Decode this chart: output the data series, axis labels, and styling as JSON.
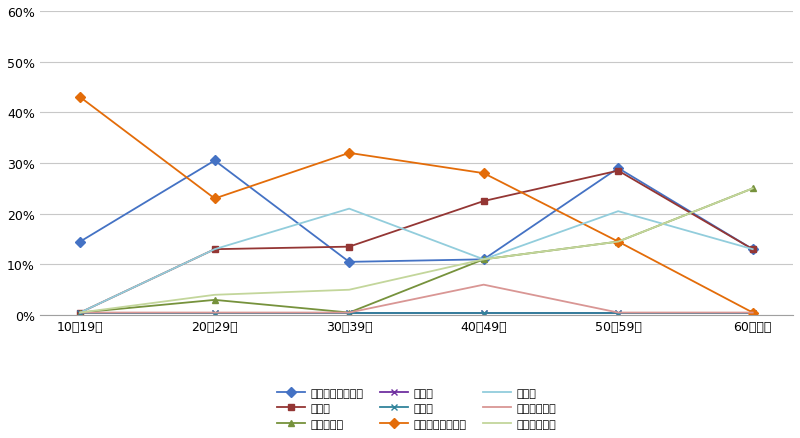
{
  "categories": [
    "10～19歳",
    "20～29歳",
    "30～39歳",
    "40～49歳",
    "50～59歳",
    "60歳以上"
  ],
  "series": [
    {
      "label": "就職・転職・転業",
      "color": "#4472C4",
      "marker": "D",
      "markersize": 5,
      "values": [
        14.5,
        30.5,
        10.5,
        11.0,
        29.0,
        13.0
      ]
    },
    {
      "label": "転　勤",
      "color": "#943634",
      "marker": "s",
      "markersize": 5,
      "values": [
        0.5,
        13.0,
        13.5,
        22.5,
        28.5,
        13.0
      ]
    },
    {
      "label": "退職・廃業",
      "color": "#76923C",
      "marker": "^",
      "markersize": 5,
      "values": [
        0.5,
        3.0,
        0.5,
        11.0,
        14.5,
        25.0
      ]
    },
    {
      "label": "就　学",
      "color": "#7030A0",
      "marker": "x",
      "markersize": 5,
      "values": [
        0.5,
        0.5,
        0.5,
        0.5,
        0.5,
        0.5
      ]
    },
    {
      "label": "卒　業",
      "color": "#31849B",
      "marker": "x",
      "markersize": 5,
      "values": [
        0.5,
        0.5,
        0.5,
        0.5,
        0.5,
        0.5
      ]
    },
    {
      "label": "結婚・離婚・縁組",
      "color": "#E36C09",
      "marker": "D",
      "markersize": 5,
      "values": [
        43.0,
        23.0,
        32.0,
        28.0,
        14.5,
        0.5
      ]
    },
    {
      "label": "住　宅",
      "color": "#92CDDC",
      "marker": null,
      "markersize": 5,
      "values": [
        0.5,
        13.0,
        21.0,
        11.0,
        20.5,
        13.0
      ]
    },
    {
      "label": "交通の利便性",
      "color": "#D99694",
      "marker": null,
      "markersize": 5,
      "values": [
        0.5,
        0.5,
        0.5,
        6.0,
        0.5,
        0.5
      ]
    },
    {
      "label": "生活の利便性",
      "color": "#C3D69B",
      "marker": null,
      "markersize": 5,
      "values": [
        0.5,
        4.0,
        5.0,
        11.0,
        14.5,
        25.0
      ]
    }
  ],
  "legend_order": [
    0,
    1,
    2,
    3,
    4,
    5,
    6,
    7,
    8
  ],
  "ylim": [
    0,
    60
  ],
  "yticks": [
    0,
    10,
    20,
    30,
    40,
    50,
    60
  ],
  "background_color": "#FFFFFF",
  "grid_color": "#C8C8C8",
  "figure_size": [
    8.0,
    4.39
  ],
  "dpi": 100
}
